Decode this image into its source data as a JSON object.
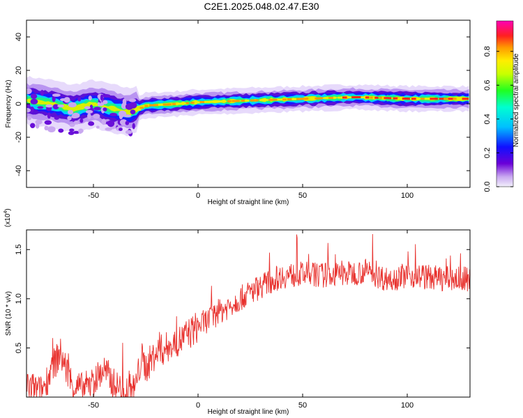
{
  "title": "C2E1.2025.048.02.47.E30",
  "chart_data": [
    {
      "type": "heatmap",
      "xlabel": "Height of straight line (km)",
      "ylabel": "Frequency (Hz)",
      "xlim": [
        -82,
        130
      ],
      "ylim": [
        -50,
        50
      ],
      "xticks": [
        -50,
        0,
        50,
        100
      ],
      "yticks": [
        -40,
        -20,
        0,
        20,
        40
      ],
      "colorbar": {
        "label": "Normalized spectral amplitude",
        "range": [
          0,
          0.98
        ],
        "ticks": [
          "0.0",
          "0.2",
          "0.4",
          "0.6",
          "0.8"
        ]
      },
      "ridge": {
        "x": [
          -82,
          -70,
          -60,
          -50,
          -40,
          -33,
          -25,
          -10,
          0,
          25,
          50,
          75,
          100,
          130
        ],
        "y": [
          2,
          0,
          -3,
          0,
          -3,
          -5,
          -1,
          0,
          1,
          2,
          3,
          4,
          3,
          3
        ]
      }
    },
    {
      "type": "line",
      "xlabel": "Height of straight line (km)",
      "ylabel": "SNR (10 * v/v)",
      "yscale_note": "(x10^4)",
      "xlim": [
        -82,
        130
      ],
      "ylim": [
        0,
        1.7
      ],
      "xticks": [
        -50,
        0,
        50,
        100
      ],
      "yticks": [
        0.5,
        1.0,
        1.5
      ],
      "series": [
        {
          "color": "#e8302c",
          "envelope_x": [
            -82,
            -75,
            -70,
            -66,
            -60,
            -55,
            -50,
            -45,
            -40,
            -35,
            -30,
            -27,
            -25,
            -20,
            -10,
            0,
            10,
            20,
            30,
            40,
            50,
            60,
            70,
            80,
            90,
            100,
            110,
            120,
            130
          ],
          "envelope_y": [
            0.12,
            0.05,
            0.28,
            0.45,
            0.12,
            0.08,
            0.15,
            0.28,
            0.12,
            0.06,
            0.09,
            0.4,
            0.3,
            0.45,
            0.55,
            0.72,
            0.86,
            1.0,
            1.13,
            1.23,
            1.25,
            1.24,
            1.25,
            1.28,
            1.2,
            1.24,
            1.22,
            1.2,
            1.2
          ]
        }
      ]
    }
  ]
}
